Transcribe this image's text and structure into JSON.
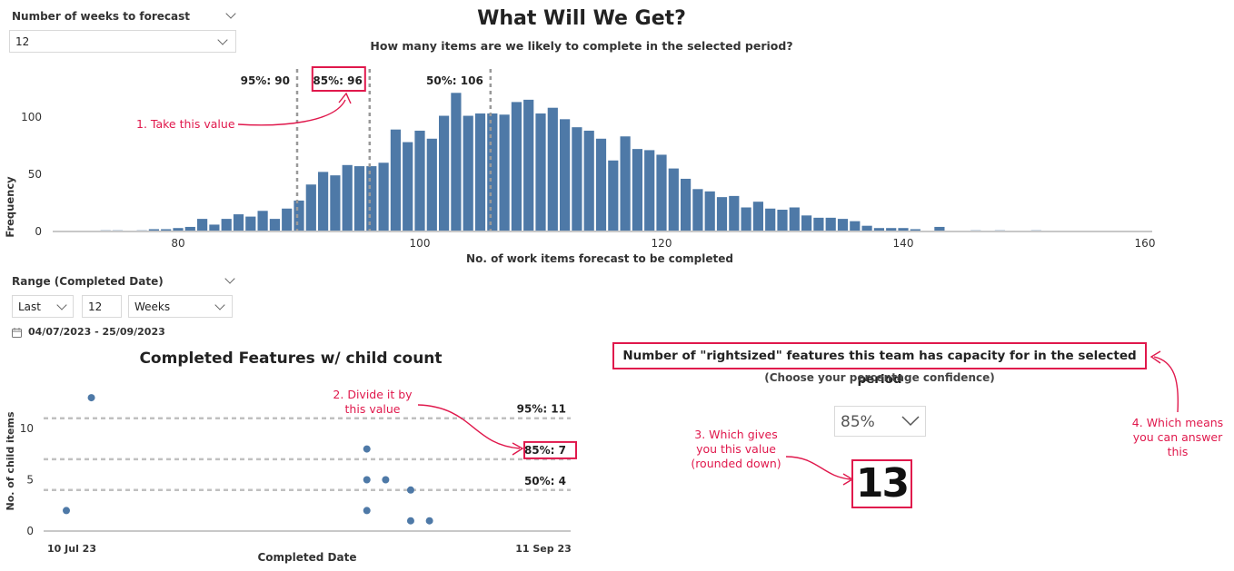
{
  "weeks_filter": {
    "label": "Number of weeks to forecast",
    "value": "12"
  },
  "hist": {
    "title": "What Will We Get?",
    "subtitle": "How many items are we likely to complete in the selected period?",
    "ylabel": "Frequency",
    "xlabel": "No. of work items forecast to be completed",
    "ref_lines": [
      {
        "label": "95%: 90",
        "x": 90
      },
      {
        "label": "85%: 96",
        "x": 96
      },
      {
        "label": "50%: 106",
        "x": 106
      }
    ],
    "annotation": "1. Take this value"
  },
  "range_filter": {
    "label": "Range (Completed Date)",
    "mode": "Last",
    "count": "12",
    "unit": "Weeks",
    "dates": "04/07/2023 - 25/09/2023"
  },
  "scatter": {
    "title": "Completed Features w/ child count",
    "ylabel": "No. of child items",
    "xlabel": "Completed Date",
    "x_start_label": "10 Jul 23",
    "x_end_label": "11 Sep 23",
    "ref_lines": [
      {
        "label": "95%: 11",
        "y": 11
      },
      {
        "label": "85%: 7",
        "y": 7
      },
      {
        "label": "50%: 4",
        "y": 4
      }
    ],
    "annotation": "2. Divide it by this value"
  },
  "capacity": {
    "heading": "Number of \"rightsized\" features this team has capacity for in the selected period",
    "subheading": "(Choose your percentage confidence)",
    "confidence": "85%",
    "result": "13",
    "annotation_3": "3. Which gives you this value (rounded down)",
    "annotation_4": "4. Which means you can answer this"
  },
  "chart_data": [
    {
      "type": "bar",
      "title": "What Will We Get?",
      "xlabel": "No. of work items forecast to be completed",
      "ylabel": "Frequency",
      "xlim": [
        68,
        160
      ],
      "ylim": [
        0,
        130
      ],
      "xticks": [
        80,
        100,
        120,
        140,
        160
      ],
      "yticks": [
        0,
        50,
        100
      ],
      "x": [
        74,
        75,
        76,
        77,
        78,
        79,
        80,
        81,
        82,
        83,
        84,
        85,
        86,
        87,
        88,
        89,
        90,
        91,
        92,
        93,
        94,
        95,
        96,
        97,
        98,
        99,
        100,
        101,
        102,
        103,
        104,
        105,
        106,
        107,
        108,
        109,
        110,
        111,
        112,
        113,
        114,
        115,
        116,
        117,
        118,
        119,
        120,
        121,
        122,
        123,
        124,
        125,
        126,
        127,
        128,
        129,
        130,
        131,
        132,
        133,
        134,
        135,
        136,
        137,
        138,
        139,
        140,
        141,
        142,
        143,
        144,
        145,
        146,
        147,
        148,
        149,
        150,
        151
      ],
      "values": [
        1,
        1,
        0,
        1,
        2,
        2,
        3,
        4,
        11,
        6,
        11,
        15,
        13,
        18,
        11,
        20,
        27,
        41,
        52,
        49,
        58,
        57,
        57,
        60,
        89,
        78,
        88,
        81,
        101,
        121,
        101,
        103,
        103,
        102,
        113,
        115,
        103,
        108,
        98,
        91,
        88,
        81,
        62,
        83,
        72,
        71,
        67,
        55,
        46,
        37,
        35,
        30,
        31,
        21,
        26,
        20,
        19,
        21,
        14,
        12,
        12,
        11,
        9,
        5,
        3,
        3,
        3,
        2,
        0,
        4,
        0,
        0,
        1,
        0,
        1,
        0,
        0,
        1
      ]
    },
    {
      "type": "scatter",
      "title": "Completed Features w/ child count",
      "xlabel": "Completed Date",
      "ylabel": "No. of child items",
      "ylim": [
        0,
        14
      ],
      "yticks": [
        0,
        5,
        10
      ],
      "x": [
        "2023-07-10",
        "2023-07-14",
        "2023-08-27",
        "2023-08-27",
        "2023-08-27",
        "2023-08-30",
        "2023-09-03",
        "2023-09-03",
        "2023-09-06"
      ],
      "values": [
        2,
        13,
        8,
        5,
        2,
        5,
        4,
        1,
        1
      ]
    }
  ]
}
